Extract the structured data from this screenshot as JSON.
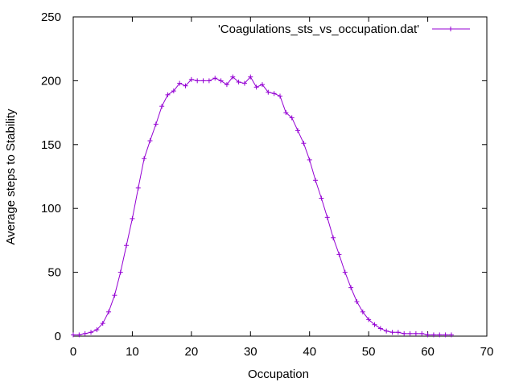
{
  "chart_data": {
    "type": "line",
    "xlabel": "Occupation",
    "ylabel": "Average steps to Stability",
    "xlim": [
      0,
      70
    ],
    "ylim": [
      0,
      250
    ],
    "xticks": [
      0,
      10,
      20,
      30,
      40,
      50,
      60,
      70
    ],
    "yticks": [
      0,
      50,
      100,
      150,
      200,
      250
    ],
    "grid": false,
    "legend_position": "top-right",
    "series": [
      {
        "name": "'Coagulations_sts_vs_occupation.dat'",
        "color": "#9400d3",
        "marker": "plus",
        "x": [
          0,
          1,
          2,
          3,
          4,
          5,
          6,
          7,
          8,
          9,
          10,
          11,
          12,
          13,
          14,
          15,
          16,
          17,
          18,
          19,
          20,
          21,
          22,
          23,
          24,
          25,
          26,
          27,
          28,
          29,
          30,
          31,
          32,
          33,
          34,
          35,
          36,
          37,
          38,
          39,
          40,
          41,
          42,
          43,
          44,
          45,
          46,
          47,
          48,
          49,
          50,
          51,
          52,
          53,
          54,
          55,
          56,
          57,
          58,
          59,
          60,
          61,
          62,
          63,
          64
        ],
        "y": [
          1,
          1,
          2,
          3,
          5,
          10,
          19,
          32,
          50,
          71,
          92,
          116,
          139,
          153,
          166,
          180,
          189,
          192,
          198,
          196,
          201,
          200,
          200,
          200,
          202,
          200,
          197,
          203,
          199,
          198,
          203,
          195,
          197,
          191,
          190,
          188,
          175,
          171,
          161,
          151,
          138,
          122,
          108,
          93,
          77,
          64,
          50,
          38,
          27,
          19,
          13,
          9,
          6,
          4,
          3,
          3,
          2,
          2,
          2,
          2,
          1,
          1,
          1,
          1,
          1
        ]
      }
    ]
  }
}
